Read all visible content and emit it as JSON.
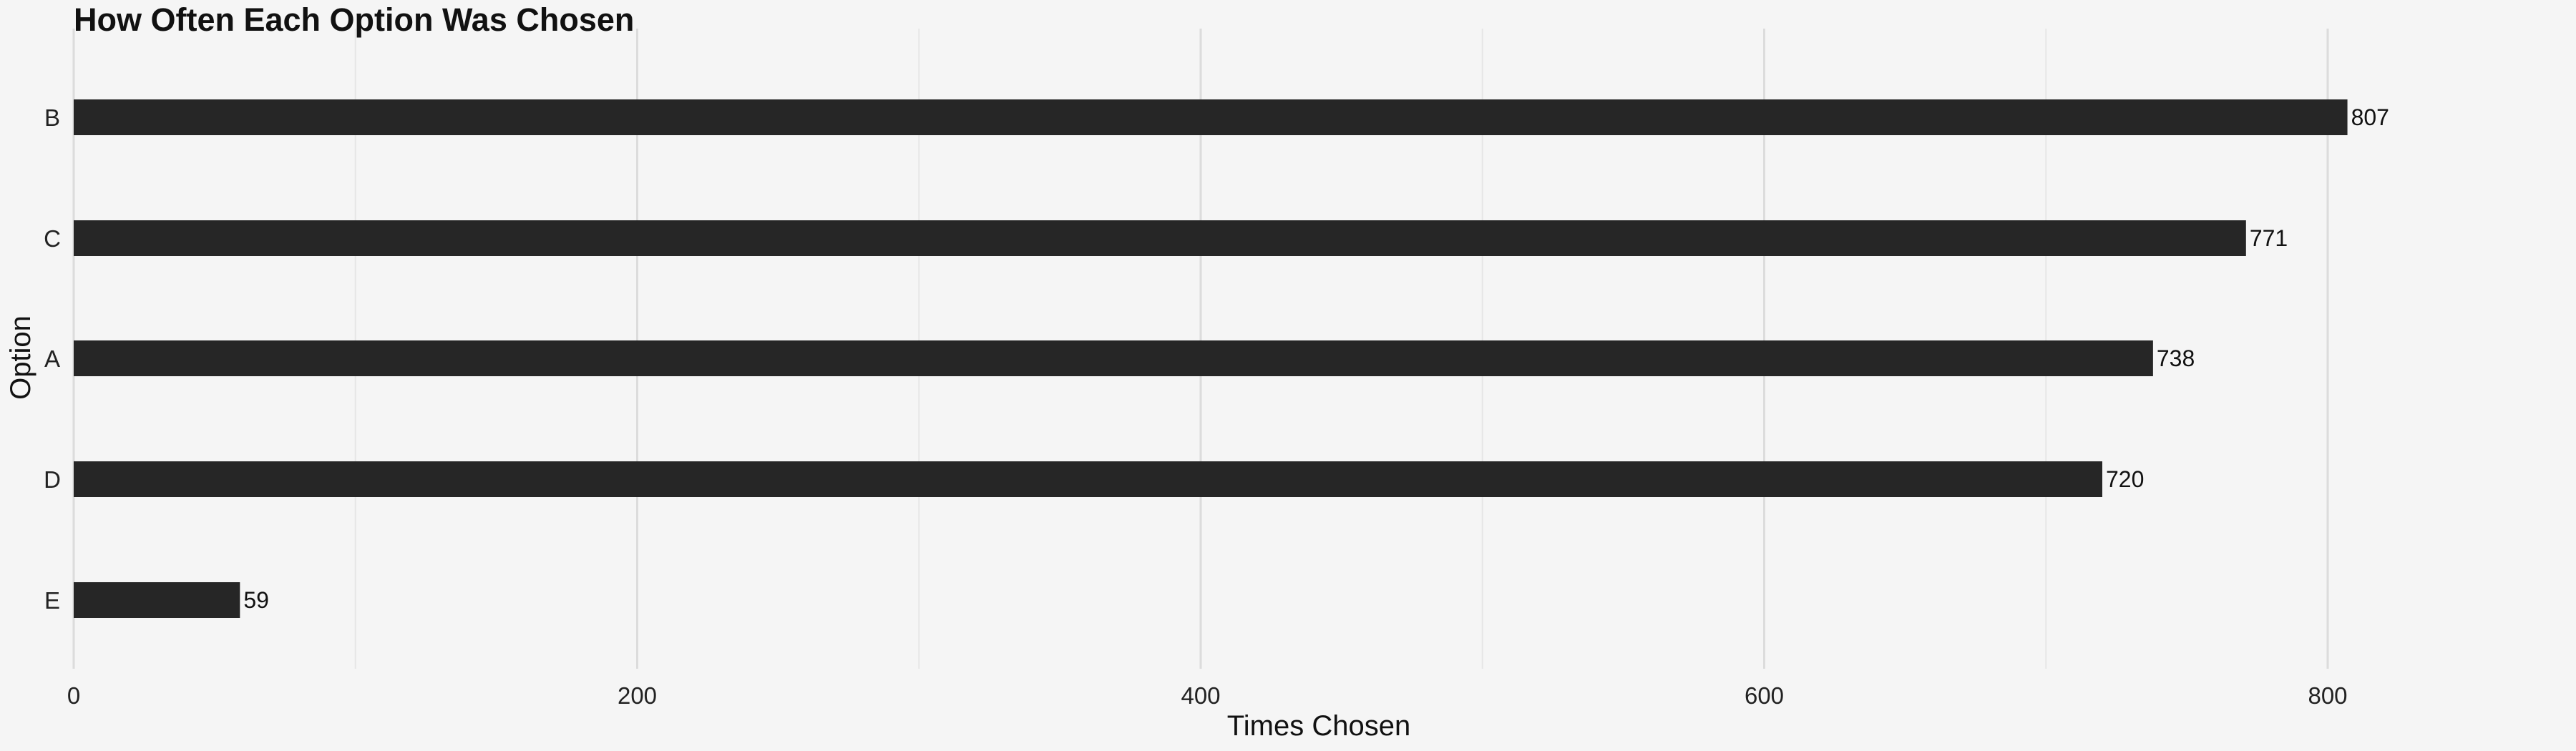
{
  "chart_data": {
    "type": "bar",
    "orientation": "horizontal",
    "title": "How Often Each Option Was Chosen",
    "xlabel": "Times Chosen",
    "ylabel": "Option",
    "categories": [
      "B",
      "C",
      "A",
      "D",
      "E"
    ],
    "values": [
      807,
      771,
      738,
      720,
      59
    ],
    "xlim": [
      0,
      890
    ],
    "xticks": [
      0,
      200,
      400,
      600,
      800
    ],
    "grid": true,
    "bar_color": "#262626",
    "background": "#f5f5f5",
    "grid_color": "#dcdcdc"
  }
}
